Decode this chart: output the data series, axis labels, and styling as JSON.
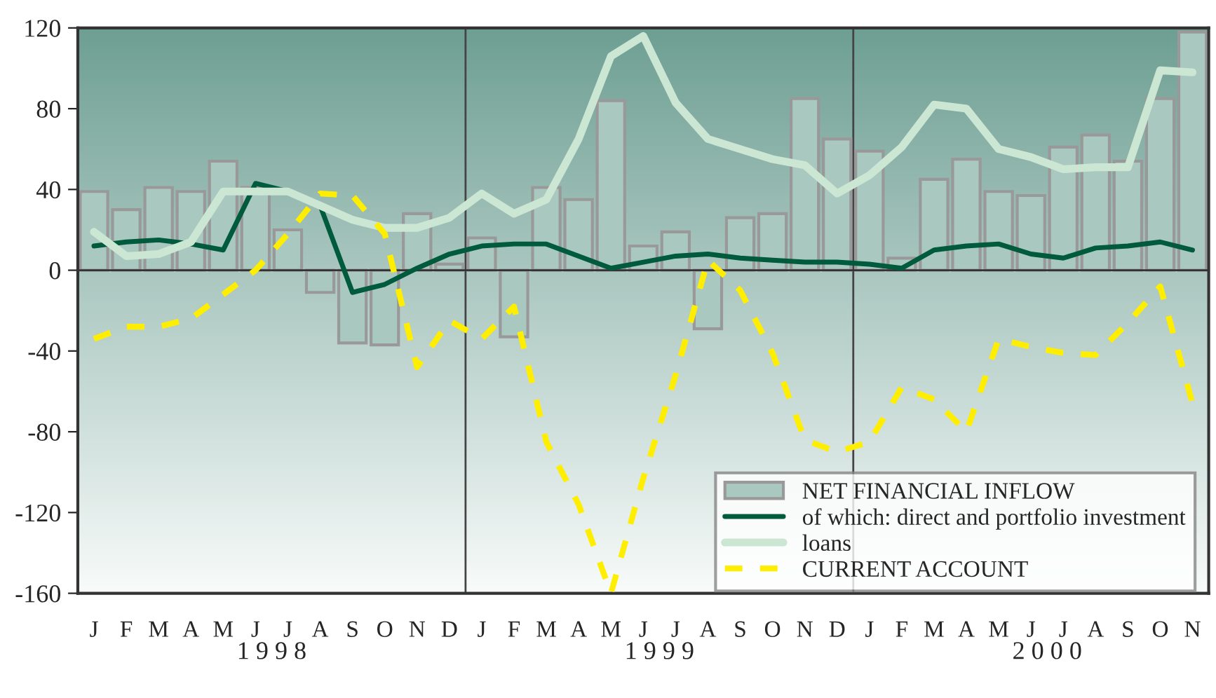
{
  "chart_data": {
    "type": "bar",
    "categories": [
      "J",
      "F",
      "M",
      "A",
      "M",
      "J",
      "J",
      "A",
      "S",
      "O",
      "N",
      "D",
      "J",
      "F",
      "M",
      "A",
      "M",
      "J",
      "J",
      "A",
      "S",
      "O",
      "N",
      "D",
      "J",
      "F",
      "M",
      "A",
      "M",
      "J",
      "J",
      "A",
      "S",
      "O",
      "N"
    ],
    "series": [
      {
        "name": "NET FINANCIAL INFLOW",
        "color": "#a9c9c0",
        "values": [
          39,
          30,
          41,
          39,
          54,
          41,
          20,
          -11,
          -36,
          -37,
          28,
          3,
          16,
          -33,
          41,
          35,
          84,
          12,
          19,
          -29,
          26,
          28,
          85,
          65,
          59,
          6,
          45,
          55,
          39,
          37,
          61,
          67,
          54,
          85,
          118
        ]
      },
      {
        "name": "of which: direct and portfolio investment",
        "type": "line",
        "color": "#005a3c",
        "values": [
          12,
          14,
          15,
          13,
          10,
          43,
          39,
          32,
          -11,
          -7,
          1,
          8,
          12,
          13,
          13,
          7,
          1,
          4,
          7,
          8,
          6,
          5,
          4,
          4,
          3,
          1,
          10,
          12,
          13,
          8,
          6,
          11,
          12,
          14,
          10
        ]
      },
      {
        "name": "loans",
        "type": "line",
        "color": "#cce6d4",
        "values": [
          19,
          7,
          8,
          14,
          39,
          39,
          39,
          32,
          25,
          21,
          21,
          26,
          38,
          28,
          35,
          65,
          106,
          116,
          83,
          65,
          60,
          55,
          52,
          38,
          47,
          61,
          82,
          80,
          60,
          56,
          50,
          51,
          51,
          99,
          98
        ]
      },
      {
        "name": "CURRENT ACCOUNT",
        "type": "line",
        "line_style": "dashed",
        "color": "#ffee00",
        "values": [
          -34,
          -28,
          -28,
          -24,
          -12,
          0,
          18,
          38,
          37,
          18,
          -48,
          -25,
          -34,
          -18,
          -85,
          -116,
          -160,
          -103,
          -52,
          5,
          -10,
          -41,
          -84,
          -90,
          -85,
          -58,
          -64,
          -80,
          -34,
          -38,
          -41,
          -42,
          -26,
          -8,
          -66
        ]
      }
    ],
    "ylim": [
      -160,
      120
    ],
    "yticks": [
      -160,
      -120,
      -80,
      -40,
      0,
      40,
      80,
      120
    ],
    "annotations": [
      "1 9 9 8",
      "1 9 9 9",
      "2 0 0 0"
    ],
    "legend": "bottom right",
    "grid": false
  }
}
